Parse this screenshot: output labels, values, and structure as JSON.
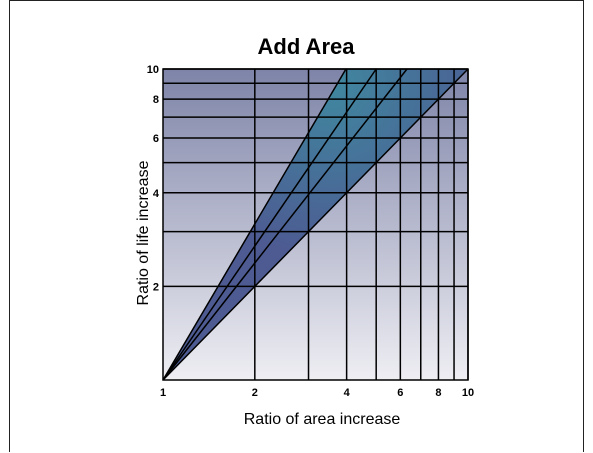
{
  "chart_data": {
    "type": "line",
    "title": "Add Area",
    "xlabel": "Ratio of area increase",
    "ylabel": "Ratio of life increase",
    "xscale": "log",
    "yscale": "log",
    "xlim": [
      1,
      10
    ],
    "ylim": [
      1,
      10
    ],
    "x_ticks": [
      1,
      2,
      4,
      6,
      8,
      10
    ],
    "y_ticks": [
      2,
      4,
      6,
      8,
      10
    ],
    "x_gridlines": [
      2,
      3,
      4,
      5,
      6,
      7,
      8,
      9,
      10
    ],
    "y_gridlines": [
      2,
      3,
      4,
      5,
      6,
      7,
      8,
      9,
      10
    ],
    "grid": true,
    "series": [
      {
        "exponent": 1.0,
        "x": [
          1,
          10
        ],
        "y": [
          1,
          10
        ]
      },
      {
        "exponent": 1.25,
        "x": [
          1,
          6.31
        ],
        "y": [
          1,
          10
        ]
      },
      {
        "exponent": 1.43,
        "x": [
          1,
          5.0
        ],
        "y": [
          1,
          10
        ]
      },
      {
        "exponent": 1.67,
        "x": [
          1,
          3.98
        ],
        "y": [
          1,
          10
        ]
      }
    ],
    "band": {
      "exponent_low": 1.0,
      "exponent_high": 1.67
    },
    "colors": {
      "background_top": "#7e84a8",
      "background_bottom": "#eeeef3",
      "band_fill": "#4d5b92",
      "band_highlight": "#3f8aa0",
      "lines": "#000000"
    }
  }
}
